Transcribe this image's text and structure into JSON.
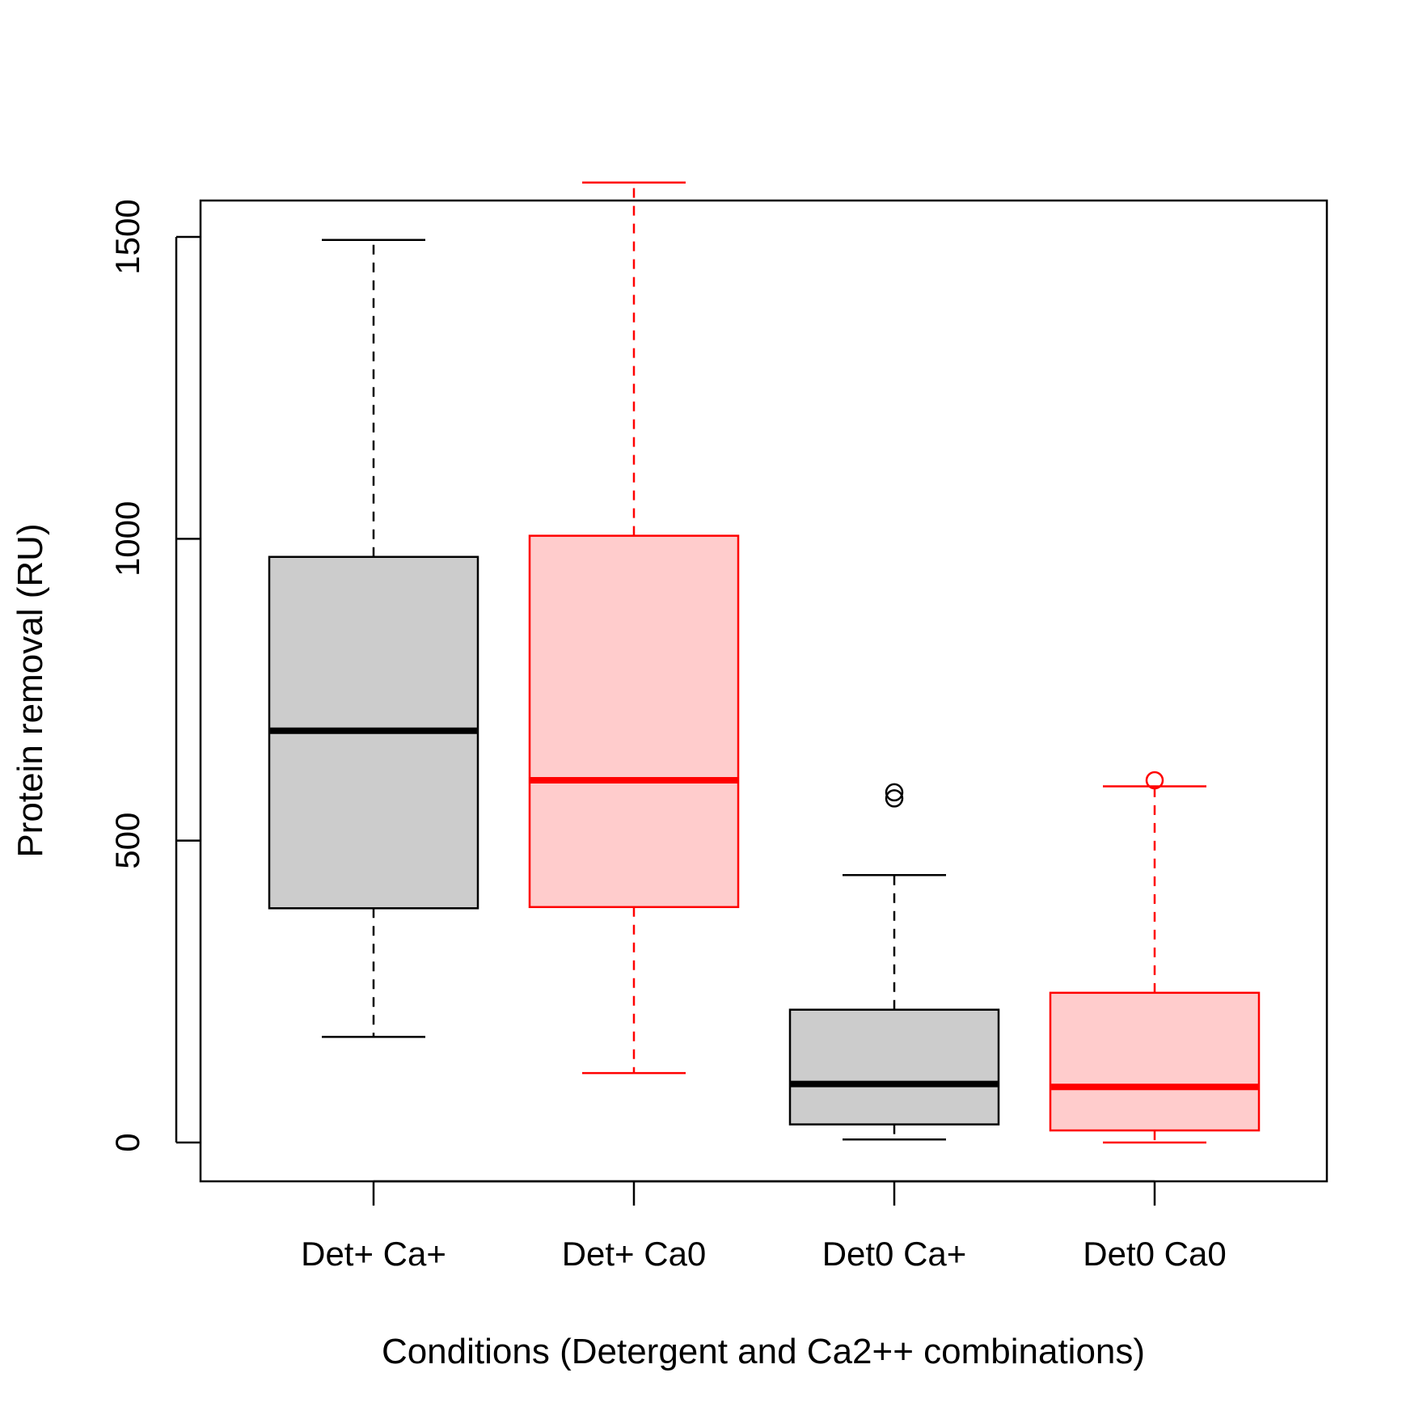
{
  "chart_data": {
    "type": "boxplot",
    "xlabel": "Conditions (Detergent and Ca2++ combinations)",
    "ylabel": "Protein removal (RU)",
    "ylim": [
      -65,
      1660
    ],
    "yticks": [
      0,
      500,
      1000,
      1500
    ],
    "grid": false,
    "legend": "none",
    "categories": [
      "Det+ Ca+",
      "Det+ Ca0",
      "Det0 Ca+",
      "Det0 Ca0"
    ],
    "boxes": [
      {
        "category": "Det+ Ca+",
        "min": 175,
        "q1": 388,
        "median": 682,
        "q3": 970,
        "max": 1495,
        "outliers": [],
        "edge_color": "#000000",
        "fill_color": "#cccccc"
      },
      {
        "category": "Det+ Ca0",
        "min": 115,
        "q1": 390,
        "median": 600,
        "q3": 1005,
        "max": 1590,
        "outliers": [],
        "edge_color": "#ff0000",
        "fill_color": "#ffcccc"
      },
      {
        "category": "Det0 Ca+",
        "min": 5,
        "q1": 30,
        "median": 97,
        "q3": 220,
        "max": 443,
        "outliers": [
          570,
          580
        ],
        "edge_color": "#000000",
        "fill_color": "#cccccc"
      },
      {
        "category": "Det0 Ca0",
        "min": 0,
        "q1": 20,
        "median": 92,
        "q3": 248,
        "max": 590,
        "outliers": [
          600
        ],
        "edge_color": "#ff0000",
        "fill_color": "#ffcccc"
      }
    ]
  }
}
